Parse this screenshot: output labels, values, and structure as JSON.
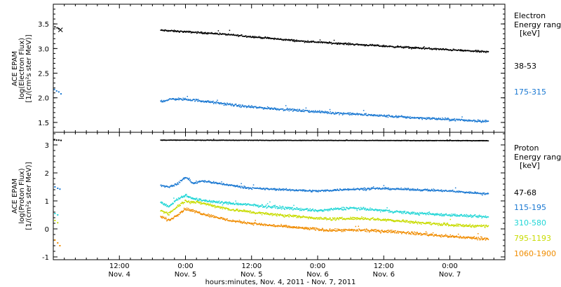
{
  "figure": {
    "xlabel": "hours:minutes, Nov.  4, 2011 - Nov.  7, 2011",
    "x_tick_labels": [
      {
        "x": 12,
        "time": "12:00",
        "date": "Nov. 4"
      },
      {
        "x": 24,
        "time": "0:00",
        "date": "Nov. 5"
      },
      {
        "x": 36,
        "time": "12:00",
        "date": "Nov. 5"
      },
      {
        "x": 48,
        "time": "0:00",
        "date": "Nov. 6"
      },
      {
        "x": 60,
        "time": "12:00",
        "date": "Nov. 6"
      },
      {
        "x": 72,
        "time": "0:00",
        "date": "Nov. 7"
      }
    ]
  },
  "chart_data": [
    {
      "type": "scatter",
      "panel": "electron",
      "ylabel": [
        "ACE EPAM",
        "log(Electron Flux)",
        "[1/(cm²s ster MeV)]"
      ],
      "xlim": [
        0,
        82
      ],
      "ylim": [
        1.3,
        3.9
      ],
      "yticks": [
        1.5,
        2.0,
        2.5,
        3.0,
        3.5
      ],
      "ytick_labels": [
        "1.5",
        "2.0",
        "2.5",
        "3.0",
        "3.5"
      ],
      "legend_title": [
        "Electron",
        "Energy ranges",
        "[keV]"
      ],
      "series": [
        {
          "name": "38-53",
          "color": "#000000",
          "pre_points": [
            [
              0.3,
              3.44
            ],
            [
              0.7,
              3.42
            ],
            [
              1.0,
              3.4
            ]
          ],
          "marker": {
            "x": 1.3,
            "y": 3.38,
            "symbol": "x"
          },
          "start": 19.5,
          "end": 79,
          "trend": [
            [
              19.5,
              3.37
            ],
            [
              30,
              3.3
            ],
            [
              45,
              3.15
            ],
            [
              60,
              3.05
            ],
            [
              79,
              2.93
            ]
          ],
          "noise": 0.025
        },
        {
          "name": "175-315",
          "color": "#1a78d2",
          "pre_points": [
            [
              0.2,
              2.17
            ],
            [
              0.6,
              2.14
            ],
            [
              1.0,
              2.12
            ],
            [
              1.4,
              2.08
            ]
          ],
          "start": 19.5,
          "end": 79,
          "trend": [
            [
              19.5,
              1.93
            ],
            [
              22,
              1.98
            ],
            [
              26,
              1.95
            ],
            [
              35,
              1.82
            ],
            [
              50,
              1.7
            ],
            [
              65,
              1.6
            ],
            [
              79,
              1.52
            ]
          ],
          "noise": 0.035
        }
      ]
    },
    {
      "type": "scatter",
      "panel": "proton",
      "ylabel": [
        "ACE EPAM",
        "log(Proton Flux)",
        "[1/(cm²s ster MeV)]"
      ],
      "xlim": [
        0,
        82
      ],
      "ylim": [
        -1.1,
        3.45
      ],
      "yticks": [
        -1,
        0,
        1,
        2,
        3
      ],
      "ytick_labels": [
        "-1",
        "0",
        "1",
        "2",
        "3"
      ],
      "legend_title": [
        "Proton",
        "Energy ranges",
        "[keV]"
      ],
      "series": [
        {
          "name": "47-68",
          "color": "#000000",
          "pre_points": [
            [
              0.2,
              3.18
            ],
            [
              0.6,
              3.17
            ],
            [
              1.0,
              3.17
            ],
            [
              1.4,
              3.16
            ]
          ],
          "start": 19.5,
          "end": 79,
          "trend": [
            [
              19.5,
              3.17
            ],
            [
              79,
              3.15
            ]
          ],
          "noise": 0.012
        },
        {
          "name": "115-195",
          "color": "#1a78d2",
          "pre_points": [
            [
              0.3,
              1.5
            ],
            [
              0.8,
              1.45
            ],
            [
              1.2,
              1.42
            ]
          ],
          "start": 19.5,
          "end": 79,
          "trend": [
            [
              19.5,
              1.55
            ],
            [
              21,
              1.5
            ],
            [
              22.5,
              1.6
            ],
            [
              24,
              1.85
            ],
            [
              25.5,
              1.62
            ],
            [
              27,
              1.72
            ],
            [
              30,
              1.62
            ],
            [
              36,
              1.45
            ],
            [
              42,
              1.4
            ],
            [
              48,
              1.35
            ],
            [
              54,
              1.42
            ],
            [
              60,
              1.44
            ],
            [
              66,
              1.4
            ],
            [
              72,
              1.35
            ],
            [
              79,
              1.25
            ]
          ],
          "noise": 0.05
        },
        {
          "name": "310-580",
          "color": "#22d6d6",
          "pre_points": [
            [
              0.3,
              0.55
            ],
            [
              0.8,
              0.5
            ]
          ],
          "start": 19.5,
          "end": 79,
          "trend": [
            [
              19.5,
              0.95
            ],
            [
              21,
              0.8
            ],
            [
              22.5,
              1.05
            ],
            [
              24,
              1.2
            ],
            [
              26,
              1.05
            ],
            [
              30,
              0.95
            ],
            [
              36,
              0.85
            ],
            [
              42,
              0.75
            ],
            [
              48,
              0.65
            ],
            [
              54,
              0.75
            ],
            [
              60,
              0.65
            ],
            [
              66,
              0.55
            ],
            [
              72,
              0.5
            ],
            [
              79,
              0.42
            ]
          ],
          "noise": 0.07
        },
        {
          "name": "795-1193",
          "color": "#c8dc00",
          "pre_points": [
            [
              0.3,
              0.3
            ],
            [
              0.8,
              0.22
            ]
          ],
          "start": 19.5,
          "end": 79,
          "trend": [
            [
              19.5,
              0.65
            ],
            [
              21,
              0.55
            ],
            [
              22.5,
              0.8
            ],
            [
              24,
              1.0
            ],
            [
              27,
              0.92
            ],
            [
              32,
              0.7
            ],
            [
              38,
              0.55
            ],
            [
              44,
              0.45
            ],
            [
              50,
              0.35
            ],
            [
              56,
              0.38
            ],
            [
              62,
              0.3
            ],
            [
              68,
              0.2
            ],
            [
              74,
              0.12
            ],
            [
              79,
              0.1
            ]
          ],
          "noise": 0.07
        },
        {
          "name": "1060-1900",
          "color": "#f08c00",
          "pre_points": [
            [
              0.3,
              -0.4
            ],
            [
              0.8,
              -0.5
            ],
            [
              1.2,
              -0.6
            ]
          ],
          "start": 19.5,
          "end": 79,
          "trend": [
            [
              19.5,
              0.45
            ],
            [
              21,
              0.3
            ],
            [
              22.5,
              0.5
            ],
            [
              24,
              0.72
            ],
            [
              27,
              0.55
            ],
            [
              32,
              0.3
            ],
            [
              38,
              0.15
            ],
            [
              44,
              0.05
            ],
            [
              50,
              -0.05
            ],
            [
              56,
              -0.05
            ],
            [
              62,
              -0.1
            ],
            [
              68,
              -0.2
            ],
            [
              74,
              -0.3
            ],
            [
              79,
              -0.35
            ]
          ],
          "noise": 0.07
        }
      ]
    }
  ]
}
